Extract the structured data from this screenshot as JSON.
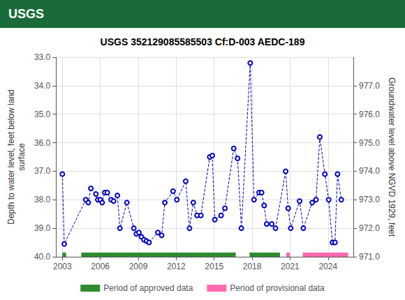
{
  "chart_data": {
    "type": "line",
    "title": "USGS 352129085585503 Cf:D-003 AEDC-189",
    "header": {
      "text": "USGS",
      "color": "#1a6b3a"
    },
    "y_label": "Depth to water level, feet below land\nsurface",
    "y2_label": "Groundwater level above NGVD 1929, feet",
    "xlim": [
      2002.5,
      2026.0
    ],
    "xticks": [
      2003,
      2006,
      2009,
      2012,
      2015,
      2018,
      2021,
      2024
    ],
    "ylim": [
      40.0,
      33.0
    ],
    "yticks": [
      {
        "value": 33.0,
        "label": "33.0"
      },
      {
        "value": 34.0,
        "label": "34.0"
      },
      {
        "value": 35.0,
        "label": "35.0"
      },
      {
        "value": 36.0,
        "label": "36.0"
      },
      {
        "value": 37.0,
        "label": "37.0"
      },
      {
        "value": 38.0,
        "label": "38.0"
      },
      {
        "value": 39.0,
        "label": "39.0"
      },
      {
        "value": 40.0,
        "label": "40.0"
      }
    ],
    "y2lim": [
      971.0,
      978.0
    ],
    "y2ticks": [
      {
        "value": 971.0,
        "label": "971.0"
      },
      {
        "value": 972.0,
        "label": "972.0"
      },
      {
        "value": 973.0,
        "label": "973.0"
      },
      {
        "value": 974.0,
        "label": "974.0"
      },
      {
        "value": 975.0,
        "label": "975.0"
      },
      {
        "value": 976.0,
        "label": "976.0"
      },
      {
        "value": 977.0,
        "label": "977.0"
      }
    ],
    "grid": true,
    "legend": "bottom",
    "series": [
      {
        "type": "line",
        "color": "#0000bb",
        "marker": "circle_open",
        "line_style": "dashed",
        "x": [
          2003.0,
          2003.15,
          2004.85,
          2005.05,
          2005.25,
          2005.65,
          2005.8,
          2006.0,
          2006.15,
          2006.35,
          2006.55,
          2006.85,
          2007.05,
          2007.35,
          2007.55,
          2008.1,
          2008.65,
          2008.85,
          2009.05,
          2009.25,
          2009.45,
          2009.65,
          2009.85,
          2010.55,
          2010.85,
          2011.1,
          2011.75,
          2012.05,
          2012.75,
          2013.05,
          2013.35,
          2013.65,
          2013.95,
          2014.65,
          2014.85,
          2015.05,
          2015.55,
          2015.85,
          2016.55,
          2016.85,
          2017.15,
          2017.85,
          2018.15,
          2018.55,
          2018.75,
          2018.95,
          2019.15,
          2019.55,
          2019.85,
          2020.65,
          2020.85,
          2021.05,
          2021.75,
          2022.05,
          2022.75,
          2023.05,
          2023.35,
          2023.75,
          2024.05,
          2024.35,
          2024.55,
          2024.75,
          2025.05
        ],
        "values": [
          37.1,
          39.55,
          38.0,
          38.1,
          37.6,
          37.8,
          38.0,
          38.0,
          38.1,
          37.75,
          37.75,
          38.0,
          38.05,
          37.85,
          39.0,
          38.1,
          39.0,
          39.2,
          39.15,
          39.3,
          39.4,
          39.45,
          39.5,
          39.15,
          39.25,
          38.1,
          37.7,
          38.0,
          37.35,
          39.0,
          38.1,
          38.55,
          38.55,
          36.5,
          36.45,
          38.7,
          38.55,
          38.3,
          36.2,
          36.55,
          39.0,
          33.2,
          38.0,
          37.75,
          37.75,
          38.2,
          38.85,
          38.85,
          39.0,
          37.0,
          38.3,
          39.0,
          38.05,
          39.0,
          38.1,
          38.0,
          35.8,
          37.1,
          38.0,
          39.5,
          39.5,
          37.1,
          38.0
        ]
      },
      {
        "name": "Period of approved data",
        "type": "period",
        "color": "#2e8b2e",
        "periods": [
          [
            2003.0,
            2003.3
          ],
          [
            2004.5,
            2016.7
          ],
          [
            2017.8,
            2020.2
          ]
        ]
      },
      {
        "name": "Period of provisional data",
        "type": "period",
        "color": "#ff69b4",
        "periods": [
          [
            2020.7,
            2021.0
          ],
          [
            2022.0,
            2025.6
          ]
        ]
      }
    ]
  }
}
